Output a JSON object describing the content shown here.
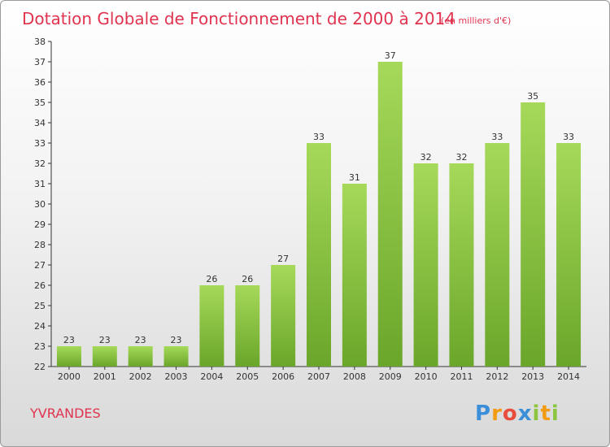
{
  "chart_data": {
    "type": "bar",
    "title": "Dotation Globale de Fonctionnement de 2000 à 2014",
    "subtitle": "(en milliers d'€)",
    "categories": [
      "2000",
      "2001",
      "2002",
      "2003",
      "2004",
      "2005",
      "2006",
      "2007",
      "2008",
      "2009",
      "2010",
      "2011",
      "2012",
      "2013",
      "2014"
    ],
    "values": [
      23,
      23,
      23,
      23,
      26,
      26,
      27,
      33,
      31,
      37,
      32,
      32,
      33,
      35,
      33
    ],
    "xlabel": "",
    "ylabel": "",
    "ylim": [
      22,
      38
    ],
    "yticks": [
      22,
      23,
      24,
      25,
      26,
      27,
      28,
      29,
      30,
      31,
      32,
      33,
      34,
      35,
      36,
      37,
      38
    ],
    "grid": false,
    "legend": "none"
  },
  "commune": "YVRANDES",
  "logo": {
    "letters": [
      "P",
      "r",
      "o",
      "x",
      "i",
      "t",
      "i"
    ],
    "colors": [
      "#3a8fd8",
      "#f39c12",
      "#e74c3c",
      "#3a8fd8",
      "#8cc63f",
      "#f39c12",
      "#8cc63f"
    ]
  },
  "colors": {
    "title": "#e0334f",
    "bar_light": "#a6d95a",
    "bar_dark": "#6aa62a",
    "axis": "#333333"
  }
}
